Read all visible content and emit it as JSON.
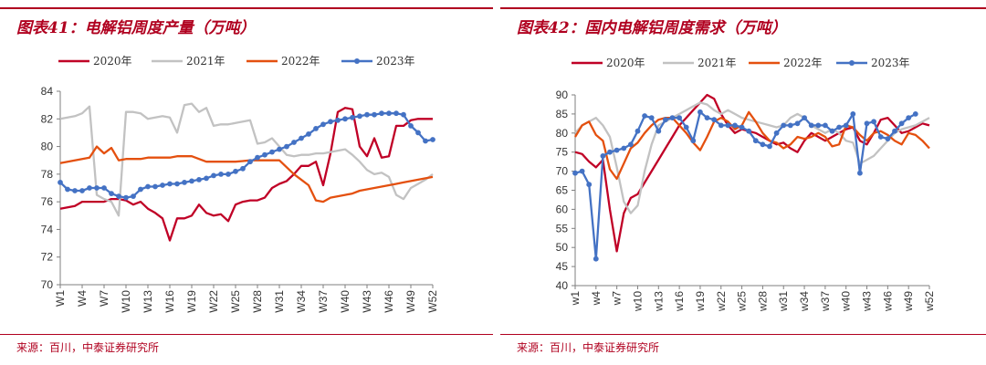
{
  "colors": {
    "accent": "#b0001f",
    "s2020": "#c00026",
    "s2021": "#c2c2c2",
    "s2022": "#e4500f",
    "s2023": "#4472c4"
  },
  "left": {
    "title": "图表41：电解铝周度产量（万吨）",
    "source": "来源：百川，中泰证券研究所",
    "chart_data": {
      "type": "line",
      "ylim": [
        70,
        84
      ],
      "yticks": [
        70,
        72,
        74,
        76,
        78,
        80,
        82,
        84
      ],
      "xtick_labels": [
        "W1",
        "W4",
        "W7",
        "W10",
        "W13",
        "W16",
        "W19",
        "W22",
        "W25",
        "W28",
        "W31",
        "W34",
        "W37",
        "W40",
        "W43",
        "W46",
        "W49",
        "W52"
      ],
      "grid": false,
      "legend_position": "top",
      "series": [
        {
          "name": "2020年",
          "marker": false,
          "values": [
            75.5,
            75.6,
            75.7,
            76.0,
            76.0,
            76.0,
            76.0,
            76.2,
            76.2,
            76.1,
            75.8,
            76.0,
            75.5,
            75.2,
            74.8,
            73.2,
            74.8,
            74.8,
            75.0,
            75.8,
            75.2,
            75.0,
            75.1,
            74.6,
            75.8,
            76.0,
            76.1,
            76.1,
            76.3,
            77.0,
            77.3,
            77.5,
            78.0,
            78.6,
            78.6,
            78.9,
            77.2,
            79.5,
            82.5,
            82.8,
            82.7,
            80.0,
            79.3,
            80.6,
            79.2,
            79.3,
            81.5,
            81.5,
            81.9,
            82.0,
            82.0,
            82.0
          ]
        },
        {
          "name": "2021年",
          "marker": false,
          "values": [
            82.0,
            82.1,
            82.2,
            82.4,
            82.9,
            76.5,
            76.2,
            76.0,
            75.0,
            82.5,
            82.5,
            82.4,
            82.0,
            82.1,
            82.2,
            82.1,
            81.0,
            83.0,
            83.1,
            82.5,
            82.8,
            81.5,
            81.6,
            81.6,
            81.7,
            81.8,
            81.9,
            80.2,
            80.3,
            80.6,
            80.0,
            79.4,
            79.3,
            79.4,
            79.4,
            79.5,
            79.5,
            79.6,
            79.7,
            79.8,
            79.4,
            78.9,
            78.3,
            78.0,
            78.1,
            77.8,
            76.5,
            76.2,
            77.0,
            77.3,
            77.6,
            78.0
          ]
        },
        {
          "name": "2022年",
          "marker": false,
          "values": [
            78.8,
            78.9,
            79.0,
            79.1,
            79.2,
            80.0,
            79.5,
            79.9,
            79.0,
            79.1,
            79.1,
            79.1,
            79.2,
            79.2,
            79.2,
            79.2,
            79.3,
            79.3,
            79.3,
            79.1,
            78.9,
            78.9,
            78.9,
            78.9,
            78.9,
            78.95,
            79.0,
            79.0,
            79.0,
            79.0,
            79.0,
            78.5,
            78.0,
            77.6,
            77.2,
            76.1,
            76.0,
            76.3,
            76.4,
            76.5,
            76.6,
            76.8,
            76.9,
            77.0,
            77.1,
            77.2,
            77.3,
            77.4,
            77.5,
            77.6,
            77.7,
            77.8
          ]
        },
        {
          "name": "2023年",
          "marker": true,
          "values": [
            77.4,
            76.9,
            76.8,
            76.8,
            77.0,
            77.0,
            77.0,
            76.6,
            76.4,
            76.3,
            76.4,
            76.9,
            77.1,
            77.1,
            77.2,
            77.3,
            77.3,
            77.4,
            77.5,
            77.6,
            77.7,
            77.9,
            78.0,
            78.0,
            78.2,
            78.4,
            78.9,
            79.2,
            79.4,
            79.6,
            79.8,
            80.0,
            80.3,
            80.6,
            80.9,
            81.3,
            81.6,
            81.8,
            81.9,
            82.0,
            82.1,
            82.2,
            82.3,
            82.3,
            82.4,
            82.4,
            82.4,
            82.3,
            81.5,
            81.0,
            80.4,
            80.5
          ]
        }
      ]
    }
  },
  "right": {
    "title": "图表42：国内电解铝周度需求（万吨）",
    "source": "来源：百川，中泰证券研究所",
    "chart_data": {
      "type": "line",
      "ylim": [
        40,
        90
      ],
      "yticks": [
        40,
        45,
        50,
        55,
        60,
        65,
        70,
        75,
        80,
        85,
        90
      ],
      "xtick_labels": [
        "w1",
        "w4",
        "w7",
        "w10",
        "w13",
        "w16",
        "w19",
        "w22",
        "w25",
        "w28",
        "w31",
        "w34",
        "w37",
        "w40",
        "w43",
        "w46",
        "w49",
        "w52"
      ],
      "grid": false,
      "legend_position": "top",
      "series": [
        {
          "name": "2020年",
          "marker": false,
          "values": [
            75.0,
            74.5,
            72.5,
            71.0,
            73.0,
            60.0,
            49.0,
            59.0,
            63.0,
            64.0,
            67.0,
            70.0,
            73.0,
            76.0,
            79.0,
            82.0,
            84.0,
            86.0,
            88.0,
            90.0,
            89.0,
            85.0,
            82.0,
            80.0,
            81.0,
            80.5,
            80.0,
            79.0,
            78.0,
            77.0,
            77.5,
            76.0,
            75.0,
            78.0,
            80.0,
            79.0,
            78.0,
            79.0,
            80.0,
            81.0,
            81.5,
            78.0,
            77.0,
            80.0,
            83.5,
            84.0,
            82.0,
            80.0,
            80.5,
            81.5,
            82.5,
            82.0
          ]
        },
        {
          "name": "2021年",
          "marker": false,
          "values": [
            80.0,
            82.0,
            83.0,
            84.0,
            82.0,
            79.0,
            71.0,
            62.0,
            59.0,
            61.0,
            70.0,
            77.0,
            82.0,
            83.0,
            84.0,
            85.0,
            86.0,
            87.0,
            88.0,
            87.5,
            86.0,
            85.0,
            86.0,
            85.0,
            84.0,
            83.5,
            83.0,
            82.5,
            82.0,
            81.5,
            82.0,
            84.0,
            85.0,
            84.0,
            82.0,
            81.0,
            80.0,
            81.0,
            80.0,
            78.0,
            77.5,
            72.0,
            73.0,
            74.0,
            76.0,
            78.0,
            80.0,
            81.0,
            81.5,
            82.0,
            83.0,
            84.0
          ]
        },
        {
          "name": "2022年",
          "marker": false,
          "values": [
            79.0,
            82.0,
            83.0,
            79.5,
            78.0,
            70.5,
            68.0,
            72.0,
            76.0,
            77.5,
            80.0,
            82.0,
            83.5,
            84.0,
            84.0,
            82.0,
            80.0,
            77.5,
            75.5,
            79.0,
            83.0,
            84.0,
            83.0,
            81.0,
            82.0,
            85.5,
            83.0,
            80.0,
            78.0,
            77.5,
            76.0,
            77.0,
            79.0,
            78.5,
            79.0,
            80.0,
            79.0,
            76.5,
            77.0,
            82.0,
            81.5,
            79.5,
            78.0,
            80.0,
            80.5,
            79.5,
            78.0,
            77.0,
            80.0,
            79.5,
            78.0,
            76.0
          ]
        },
        {
          "name": "2023年",
          "marker": true,
          "values": [
            69.5,
            70.0,
            66.5,
            47.0,
            74.0,
            75.0,
            75.5,
            76.0,
            77.0,
            80.5,
            84.5,
            84.0,
            80.5,
            83.5,
            84.0,
            84.0,
            81.5,
            78.0,
            85.5,
            84.0,
            83.5,
            82.0,
            82.0,
            82.0,
            81.5,
            80.5,
            78.0,
            77.0,
            76.5,
            80.0,
            82.0,
            82.0,
            82.5,
            84.0,
            82.0,
            82.0,
            82.0,
            80.5,
            81.5,
            82.0,
            85.0,
            69.5,
            82.5,
            83.0,
            79.0,
            78.5,
            80.5,
            82.5,
            84.0,
            85.0,
            null,
            null
          ]
        }
      ]
    }
  }
}
